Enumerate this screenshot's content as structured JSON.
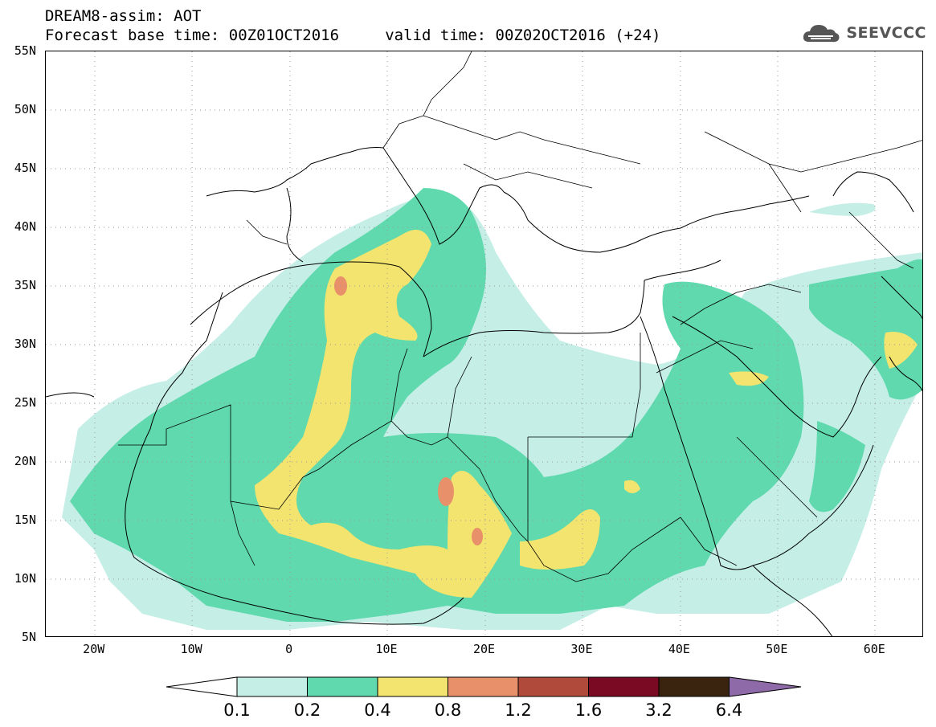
{
  "header": {
    "title": "DREAM8-assim: AOT",
    "forecast_line": "Forecast base time: 00Z01OCT2016     valid time: 00Z02OCT2016 (+24)",
    "brand": "SEEVCCC",
    "brand_icon": "cloud-logo-icon"
  },
  "map": {
    "lat_labels": [
      "55N",
      "50N",
      "45N",
      "40N",
      "35N",
      "30N",
      "25N",
      "20N",
      "15N",
      "10N",
      "5N"
    ],
    "lon_labels": [
      "20W",
      "10W",
      "0",
      "10E",
      "20E",
      "30E",
      "40E",
      "50E",
      "60E"
    ],
    "extent": {
      "lon_min": -25,
      "lon_max": 65,
      "lat_min": 5,
      "lat_max": 55
    },
    "field": "AOT"
  },
  "colorbar": {
    "labels": [
      "0.1",
      "0.2",
      "0.4",
      "0.8",
      "1.2",
      "1.6",
      "3.2",
      "6.4"
    ],
    "colors": [
      "#ffffff",
      "#c4eee6",
      "#5fd9ad",
      "#f2e46e",
      "#e8906a",
      "#b04a3a",
      "#7a0a24",
      "#3a2410",
      "#8e6aa8"
    ]
  }
}
